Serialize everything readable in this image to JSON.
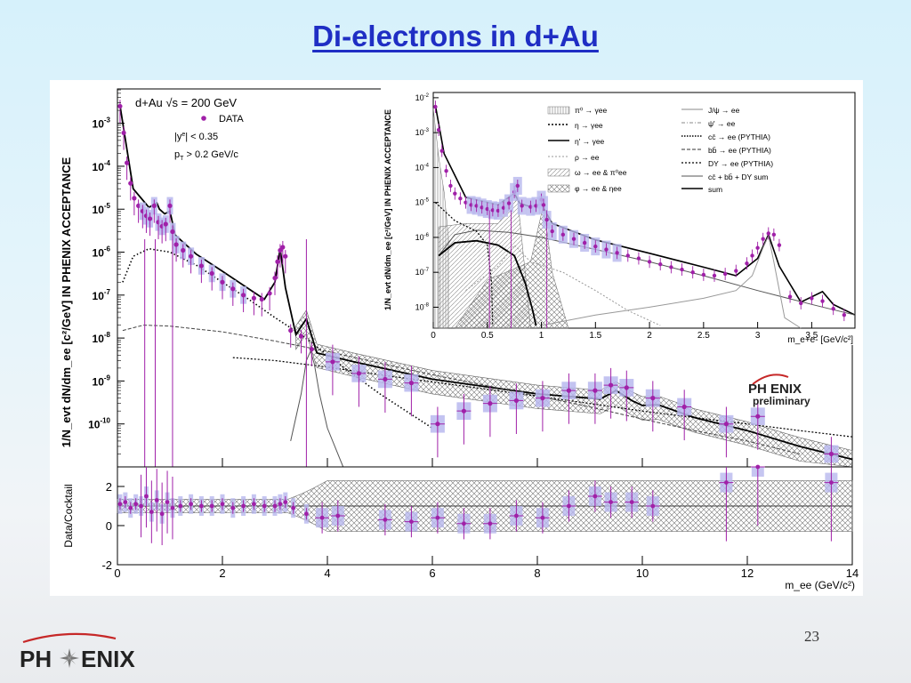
{
  "slide": {
    "title": "Di-electrons in d+Au",
    "page_number": "23",
    "logo_text_left": "PH",
    "logo_text_right": "ENIX"
  },
  "colors": {
    "title": "#1f2ec4",
    "data_points": "#a020a8",
    "sys_boxes": "#b8b8ee",
    "logo_arc": "#c62828",
    "logo_text": "#222222"
  },
  "chart_data": [
    {
      "type": "line",
      "name": "main",
      "xlabel": "m_ee (GeV/c²)",
      "ylabel": "1/N_evt dN/dm_ee [c²/GeV] IN PHENIX ACCEPTANCE",
      "xlim": [
        0,
        14
      ],
      "ylim_log10": [
        -11,
        -2.2
      ],
      "log_y": true,
      "x_ticks": [
        0,
        2,
        4,
        6,
        8,
        10,
        12,
        14
      ],
      "y_ticks": [
        {
          "label": "10",
          "exp": "-3",
          "value": 0.001
        },
        {
          "label": "10",
          "exp": "-4",
          "value": 0.0001
        },
        {
          "label": "10",
          "exp": "-5",
          "value": 1e-05
        },
        {
          "label": "10",
          "exp": "-6",
          "value": 1e-06
        },
        {
          "label": "10",
          "exp": "-7",
          "value": 1e-07
        },
        {
          "label": "10",
          "exp": "-8",
          "value": 1e-08
        },
        {
          "label": "10",
          "exp": "-9",
          "value": 1e-09
        },
        {
          "label": "10",
          "exp": "-10",
          "value": 1e-10
        }
      ],
      "text": {
        "system": "d+Au  √s = 200 GeV",
        "legend_data": "DATA",
        "cut_y": "|y",
        "cut_y_sup": "e",
        "cut_y_rest": "| < 0.35",
        "cut_pt": "p",
        "cut_pt_sub": "T",
        "cut_pt_rest": " > 0.2 GeV/c",
        "experiment": "PH ENIX",
        "status": "preliminary"
      },
      "series": [
        {
          "name": "DATA",
          "x": [
            0.05,
            0.12,
            0.18,
            0.25,
            0.32,
            0.4,
            0.48,
            0.55,
            0.62,
            0.7,
            0.78,
            0.85,
            0.92,
            1.0,
            1.05,
            1.12,
            1.25,
            1.4,
            1.6,
            1.8,
            2.0,
            2.2,
            2.4,
            2.6,
            2.75,
            2.9,
            3.0,
            3.05,
            3.1,
            3.15,
            3.2,
            3.3,
            3.5,
            3.7,
            4.1,
            4.6,
            5.1,
            5.6,
            6.1,
            6.6,
            7.1,
            7.6,
            8.1,
            8.6,
            9.1,
            9.4,
            9.7,
            10.2,
            10.8,
            11.6,
            12.2,
            13.6
          ],
          "y": [
            0.0025,
            0.0006,
            0.00012,
            4e-05,
            1.8e-05,
            1.2e-05,
            9e-06,
            7e-06,
            6e-06,
            1.2e-05,
            5e-06,
            4e-06,
            4.5e-06,
            1.2e-05,
            3e-06,
            1.5e-06,
            1.1e-06,
            8e-07,
            4.8e-07,
            3.2e-07,
            2e-07,
            1.4e-07,
            1e-07,
            8.5e-08,
            8e-08,
            1.1e-07,
            2.5e-07,
            6e-07,
            1.1e-06,
            1.3e-06,
            8e-07,
            1.5e-08,
            1.1e-08,
            5.5e-09,
            2.8e-09,
            1.5e-09,
            1.1e-09,
            9e-10,
            1e-10,
            2e-10,
            3e-10,
            3.5e-10,
            4e-10,
            6e-10,
            6e-10,
            8e-10,
            7e-10,
            4e-10,
            2.5e-10,
            1e-10,
            1.5e-10,
            2e-11
          ]
        },
        {
          "name": "sum",
          "x": [
            0.05,
            0.3,
            0.6,
            0.75,
            0.8,
            0.9,
            1.0,
            1.1,
            1.5,
            2.0,
            2.5,
            2.8,
            3.0,
            3.1,
            3.2,
            3.4,
            3.6,
            3.8,
            4.5,
            6.0,
            8.0,
            9.2,
            9.5,
            9.8,
            10.0,
            10.3,
            11,
            12,
            13,
            14
          ],
          "y": [
            0.0025,
            3e-05,
            1.1e-05,
            1.4e-05,
            1e-05,
            7.8e-06,
            9e-06,
            2.5e-06,
            9e-07,
            3.6e-07,
            1.4e-07,
            8e-08,
            2e-07,
            1.2e-06,
            1.5e-07,
            1.2e-08,
            2.8e-08,
            4.5e-09,
            2.8e-09,
            1.1e-09,
            5e-10,
            3.8e-10,
            6e-10,
            3.5e-10,
            2.7e-10,
            2.8e-10,
            1.4e-10,
            7e-11,
            3e-11,
            1.5e-11
          ]
        },
        {
          "name": "cc̄ → ee (PYTHIA)",
          "x": [
            0.1,
            0.3,
            0.6,
            1.0,
            1.5,
            2.0,
            2.5,
            3.0,
            3.5,
            4.0,
            4.5,
            5.0,
            5.5,
            6.0
          ],
          "y": [
            2e-07,
            8e-07,
            1.2e-06,
            1e-06,
            5e-07,
            2e-07,
            8e-08,
            3e-08,
            1.2e-08,
            4e-09,
            1.4e-09,
            5e-10,
            2e-10,
            8e-11
          ]
        },
        {
          "name": "bb̄ → ee (PYTHIA)",
          "x": [
            0.1,
            0.5,
            1.0,
            2.0,
            3.0,
            4.0,
            5.0,
            6.0,
            7.0,
            8.0,
            9.0,
            10.0,
            11.0,
            12.0,
            13.0
          ],
          "y": [
            1.5e-08,
            2e-08,
            1.9e-08,
            1.4e-08,
            8.5e-09,
            4.9e-09,
            2.6e-09,
            1.4e-09,
            8e-10,
            4.5e-10,
            2.5e-10,
            1.3e-10,
            7e-11,
            4e-11,
            2e-11
          ]
        },
        {
          "name": "DY → ee (PYTHIA)",
          "x": [
            2.2,
            3.0,
            4.0,
            5.0,
            6.0,
            7.0,
            8.0,
            9.0,
            10.0,
            11.0,
            12.0,
            13.0,
            14.0
          ],
          "y": [
            3.5e-09,
            3e-09,
            2.1e-09,
            1.4e-09,
            9.5e-10,
            6.5e-10,
            4.4e-10,
            3e-10,
            2e-10,
            1.4e-10,
            1e-10,
            7e-11,
            5e-11
          ]
        },
        {
          "name": "ψ' → ee",
          "x": [
            3.3,
            3.5,
            3.6,
            3.68,
            3.75,
            3.85,
            4.0,
            4.3
          ],
          "y": [
            4e-11,
            5e-10,
            3e-09,
            5e-09,
            2.5e-09,
            5e-10,
            8e-11,
            1e-11
          ]
        }
      ]
    },
    {
      "type": "line",
      "name": "inset",
      "xlabel": "m_e+e- [GeV/c²]",
      "ylabel": "1/N_evt dN/dm_ee [c²/GeV] IN PHENIX ACCEPTANCE",
      "xlim": [
        0,
        3.9
      ],
      "ylim_log10": [
        -8.6,
        -1.85
      ],
      "log_y": true,
      "x_ticks": [
        0,
        0.5,
        1,
        1.5,
        2,
        2.5,
        3,
        3.5
      ],
      "x_tick_labels": [
        "0",
        "0.5",
        "1",
        "1.5",
        "2",
        "2.5",
        "3",
        "3.5"
      ],
      "y_ticks": [
        {
          "label": "10",
          "exp": "-2",
          "value": 0.01
        },
        {
          "label": "10",
          "exp": "-3",
          "value": 0.001
        },
        {
          "label": "10",
          "exp": "-4",
          "value": 0.0001
        },
        {
          "label": "10",
          "exp": "-5",
          "value": 1e-05
        },
        {
          "label": "10",
          "exp": "-6",
          "value": 1e-06
        },
        {
          "label": "10",
          "exp": "-7",
          "value": 1e-07
        },
        {
          "label": "10",
          "exp": "-8",
          "value": 1e-08
        }
      ],
      "legend_left": [
        "π⁰ → γee",
        "η → γee",
        "η' → γee",
        "ρ → ee",
        "ω → ee & π⁰ee",
        "φ → ee & ηee"
      ],
      "legend_right": [
        "J/ψ → ee",
        "ψ' → ee",
        "cc̄ → ee (PYTHIA)",
        "bb̄ → ee (PYTHIA)",
        "DY → ee (PYTHIA)",
        "cc̄ + bb̄ + DY sum",
        "sum"
      ],
      "series": [
        {
          "name": "DATA",
          "x": [
            0.02,
            0.05,
            0.08,
            0.12,
            0.16,
            0.2,
            0.25,
            0.3,
            0.35,
            0.4,
            0.45,
            0.5,
            0.55,
            0.6,
            0.65,
            0.7,
            0.75,
            0.78,
            0.82,
            0.9,
            0.95,
            1.0,
            1.02,
            1.05,
            1.1,
            1.2,
            1.3,
            1.4,
            1.5,
            1.6,
            1.7,
            1.8,
            1.9,
            2.0,
            2.1,
            2.2,
            2.3,
            2.4,
            2.5,
            2.6,
            2.7,
            2.8,
            2.9,
            2.95,
            3.0,
            3.05,
            3.1,
            3.15,
            3.2,
            3.3,
            3.4,
            3.5,
            3.6,
            3.7,
            3.8
          ],
          "y": [
            0.0055,
            0.0012,
            0.0003,
            8e-05,
            3e-05,
            1.8e-05,
            1.3e-05,
            1e-05,
            8.5e-06,
            8e-06,
            7.2e-06,
            6.5e-06,
            6e-06,
            5.8e-06,
            7e-06,
            9.5e-06,
            2e-05,
            3e-05,
            8e-06,
            7.5e-06,
            8e-06,
            1.2e-05,
            8.5e-06,
            3.2e-06,
            1.5e-06,
            1.2e-06,
            9e-07,
            7e-07,
            5.5e-07,
            4.5e-07,
            3.6e-07,
            3e-07,
            2.5e-07,
            2e-07,
            1.7e-07,
            1.4e-07,
            1.2e-07,
            1e-07,
            8.5e-08,
            8e-08,
            9e-08,
            1.1e-07,
            1.8e-07,
            3e-07,
            5e-07,
            9e-07,
            1.3e-06,
            1.2e-06,
            6e-07,
            2e-08,
            1.3e-08,
            1.8e-08,
            1.5e-08,
            9e-09,
            6e-09
          ]
        },
        {
          "name": "sum",
          "x": [
            0.02,
            0.1,
            0.3,
            0.6,
            0.75,
            0.8,
            0.9,
            1.0,
            1.1,
            1.5,
            2.0,
            2.5,
            2.8,
            3.0,
            3.1,
            3.2,
            3.4,
            3.6,
            3.7,
            3.9
          ],
          "y": [
            0.006,
            0.00025,
            1.4e-05,
            8.5e-06,
            1.8e-05,
            9.5e-06,
            7.5e-06,
            9e-06,
            2.5e-06,
            8.5e-07,
            3.5e-07,
            1.4e-07,
            8e-08,
            2.5e-07,
            1.2e-06,
            1.5e-07,
            1.4e-08,
            2.8e-08,
            1.2e-08,
            6e-09
          ]
        },
        {
          "name": "cc̄ → ee (PYTHIA)",
          "x": [
            0.05,
            0.2,
            0.4,
            0.7,
            1.0,
            1.5,
            2.0,
            2.5,
            3.0,
            3.5,
            3.9
          ],
          "y": [
            3e-07,
            1.2e-06,
            1.6e-06,
            1.4e-06,
            1e-06,
            4.5e-07,
            2e-07,
            8e-08,
            3e-08,
            1.2e-08,
            6e-09
          ]
        },
        {
          "name": "η' → γee",
          "x": [
            0.05,
            0.2,
            0.4,
            0.6,
            0.75,
            0.85,
            0.92,
            0.95
          ],
          "y": [
            3e-07,
            7e-07,
            8e-07,
            6e-07,
            3e-07,
            5e-08,
            8e-09,
            3e-09
          ]
        },
        {
          "name": "J/ψ → ee",
          "x": [
            1.0,
            1.5,
            2.0,
            2.5,
            2.8,
            2.95,
            3.05,
            3.1,
            3.15,
            3.25,
            3.4
          ],
          "y": [
            3e-09,
            6e-09,
            1e-08,
            1.8e-08,
            3e-08,
            8e-08,
            5e-07,
            1.1e-06,
            2e-07,
            5e-09,
            2e-09
          ]
        }
      ]
    },
    {
      "type": "scatter",
      "name": "ratio",
      "xlabel": "m_ee (GeV/c²)",
      "ylabel": "Data/Cocktail",
      "xlim": [
        0,
        14
      ],
      "ylim": [
        -2,
        3
      ],
      "x_ticks": [
        0,
        2,
        4,
        6,
        8,
        10,
        12,
        14
      ],
      "y_ticks": [
        -2,
        0,
        2
      ],
      "series": [
        {
          "name": "DATA",
          "x": [
            0.05,
            0.15,
            0.25,
            0.35,
            0.45,
            0.55,
            0.65,
            0.75,
            0.85,
            0.95,
            1.05,
            1.2,
            1.4,
            1.6,
            1.8,
            2.0,
            2.2,
            2.4,
            2.6,
            2.8,
            3.0,
            3.1,
            3.2,
            3.35,
            3.6,
            3.9,
            4.2,
            5.1,
            5.6,
            6.1,
            6.6,
            7.1,
            7.6,
            8.1,
            8.6,
            9.1,
            9.4,
            9.8,
            10.2,
            11.6,
            12.2,
            13.6
          ],
          "y": [
            1.1,
            1.2,
            0.9,
            1.1,
            1.0,
            1.5,
            0.7,
            1.3,
            0.6,
            1.2,
            0.9,
            1.0,
            1.1,
            1.0,
            1.0,
            1.1,
            0.9,
            1.0,
            1.1,
            1.0,
            1.0,
            1.1,
            1.2,
            0.9,
            0.6,
            0.4,
            0.5,
            0.3,
            0.2,
            0.4,
            0.1,
            0.1,
            0.5,
            0.4,
            1.0,
            1.5,
            1.2,
            1.2,
            1.0,
            2.2,
            3.0,
            2.2
          ]
        }
      ]
    }
  ]
}
